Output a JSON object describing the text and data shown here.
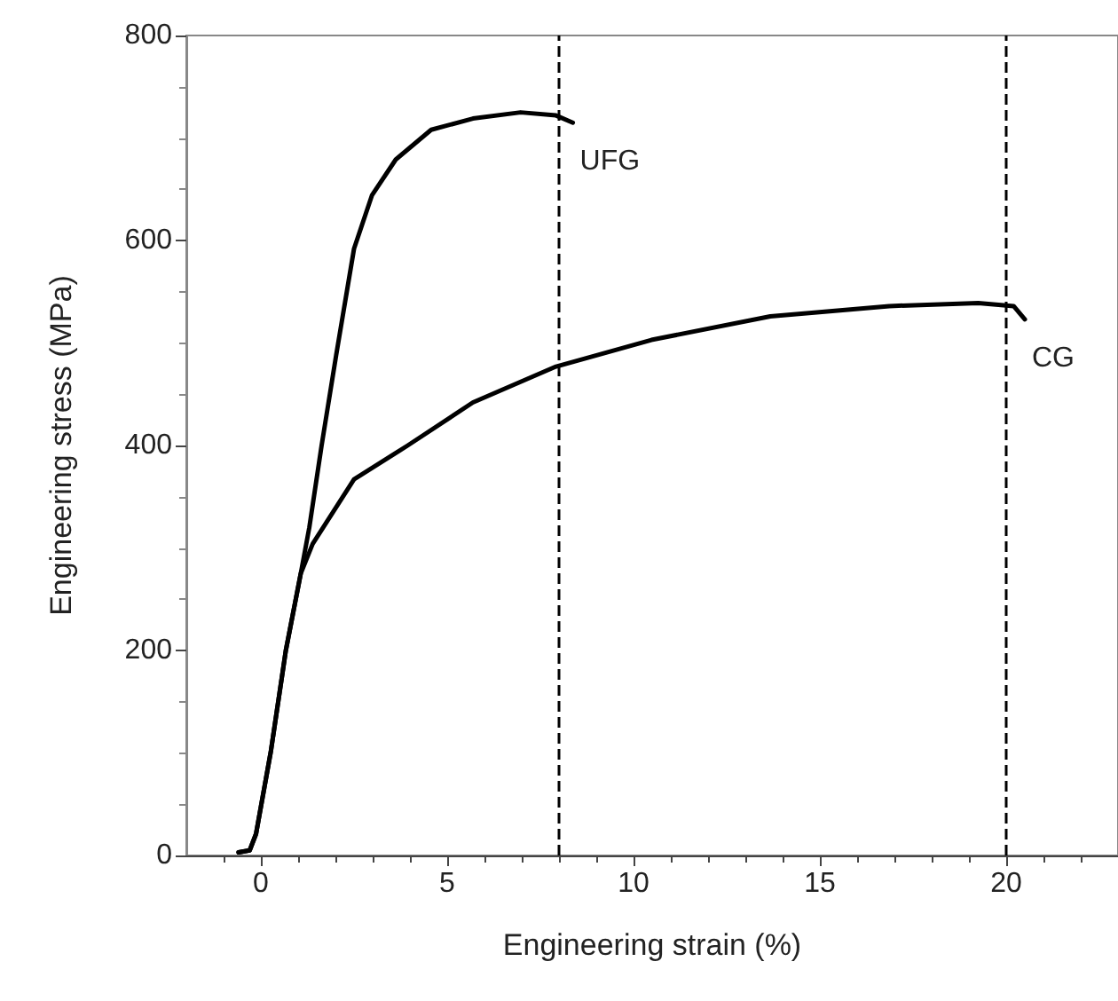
{
  "chart_data": {
    "type": "line",
    "xlabel": "Engineering strain (%)",
    "ylabel": "Engineering stress (MPa)",
    "xlim": [
      -2,
      23
    ],
    "xticks": [
      0,
      5,
      10,
      15,
      20
    ],
    "ylim": [
      0,
      800
    ],
    "yticks": [
      0,
      200,
      400,
      600,
      800
    ],
    "grid": false,
    "legend": false,
    "marker": "none",
    "line_style": "solid",
    "series": [
      {
        "name": "UFG",
        "color": "#000000",
        "x": [
          -0.6,
          -0.3,
          -0.13,
          0.27,
          0.67,
          1.07,
          1.3,
          1.63,
          2.02,
          2.5,
          2.98,
          3.62,
          4.57,
          5.69,
          6.97,
          7.92,
          8.37
        ],
        "values": [
          3,
          5,
          21,
          102,
          200,
          275,
          320,
          400,
          488,
          592,
          644,
          679,
          708,
          719,
          725,
          722,
          715
        ]
      },
      {
        "name": "CG",
        "color": "#000000",
        "x": [
          -0.6,
          -0.3,
          -0.13,
          0.27,
          0.67,
          1.07,
          1.39,
          2.5,
          3.94,
          5.69,
          7.92,
          10.48,
          13.67,
          16.86,
          19.25,
          20.2,
          20.5
        ],
        "values": [
          3,
          5,
          21,
          102,
          200,
          275,
          304,
          367,
          400,
          442,
          477,
          503,
          526,
          536,
          539,
          536,
          523
        ]
      }
    ],
    "ref_lines": [
      {
        "axis": "x",
        "value": 8,
        "line_style": "dashed",
        "color": "#000000"
      },
      {
        "axis": "x",
        "value": 20,
        "line_style": "dashed",
        "color": "#000000"
      }
    ]
  }
}
